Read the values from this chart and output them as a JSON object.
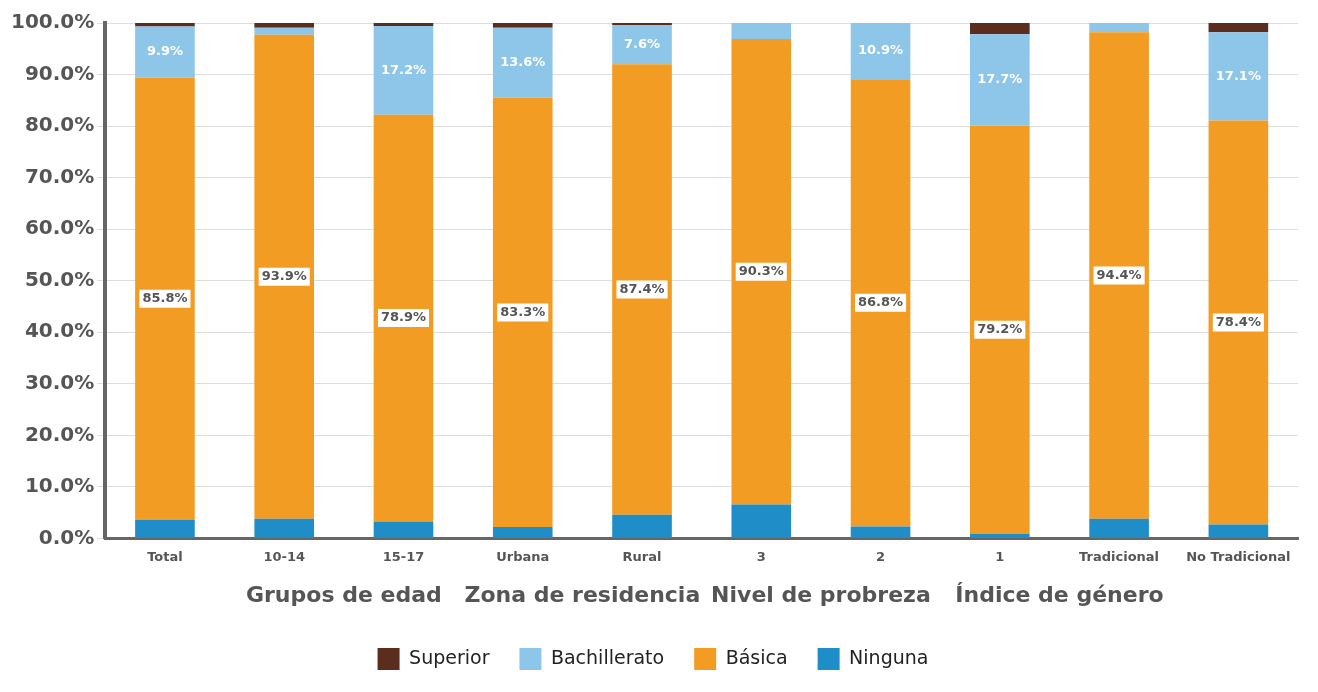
{
  "chart_data": {
    "type": "bar",
    "stacked": true,
    "categories": [
      "Total",
      "10-14",
      "15-17",
      "Urbana",
      "Rural",
      "3",
      "2",
      "1",
      "Tradicional",
      "No Tradicional"
    ],
    "series": [
      {
        "name": "Ninguna",
        "color": "#1f8dc8",
        "values": [
          3.6,
          3.8,
          3.3,
          2.2,
          4.6,
          6.6,
          2.3,
          0.9,
          3.8,
          2.7
        ]
      },
      {
        "name": "Básica",
        "color": "#f39c23",
        "values": [
          85.8,
          93.9,
          78.9,
          83.3,
          87.4,
          90.3,
          86.8,
          79.2,
          94.4,
          78.4
        ],
        "value_labels": [
          "85.8%",
          "93.9%",
          "78.9%",
          "83.3%",
          "87.4%",
          "90.3%",
          "86.8%",
          "79.2%",
          "94.4%",
          "78.4%"
        ]
      },
      {
        "name": "Bachillerato",
        "color": "#8ec6ea",
        "values": [
          9.9,
          1.4,
          17.2,
          13.6,
          7.6,
          3.1,
          10.9,
          17.7,
          1.8,
          17.1
        ],
        "value_labels": [
          "9.9%",
          null,
          "17.2%",
          "13.6%",
          "7.6%",
          null,
          "10.9%",
          "17.7%",
          null,
          "17.1%"
        ]
      },
      {
        "name": "Superior",
        "color": "#5a2d1f",
        "values": [
          0.7,
          0.9,
          0.6,
          0.9,
          0.4,
          0,
          0,
          2.2,
          0,
          1.8
        ]
      }
    ],
    "ylim": [
      0,
      100
    ],
    "yticks": [
      {
        "value": 0,
        "label": "0.0%"
      },
      {
        "value": 10,
        "label": "10.0%"
      },
      {
        "value": 20,
        "label": "20.0%"
      },
      {
        "value": 30,
        "label": "30.0%"
      },
      {
        "value": 40,
        "label": "40.0%"
      },
      {
        "value": 50,
        "label": "50.0%"
      },
      {
        "value": 60,
        "label": "60.0%"
      },
      {
        "value": 70,
        "label": "70.0%"
      },
      {
        "value": 80,
        "label": "80.0%"
      },
      {
        "value": 90,
        "label": "90.0%"
      },
      {
        "value": 100,
        "label": "100.0%"
      }
    ],
    "grid": "y",
    "legend": "bottom",
    "annotations": [
      "Grupos de edad",
      "Zona de residencia",
      "Nivel de probreza",
      "Índice de género"
    ]
  }
}
